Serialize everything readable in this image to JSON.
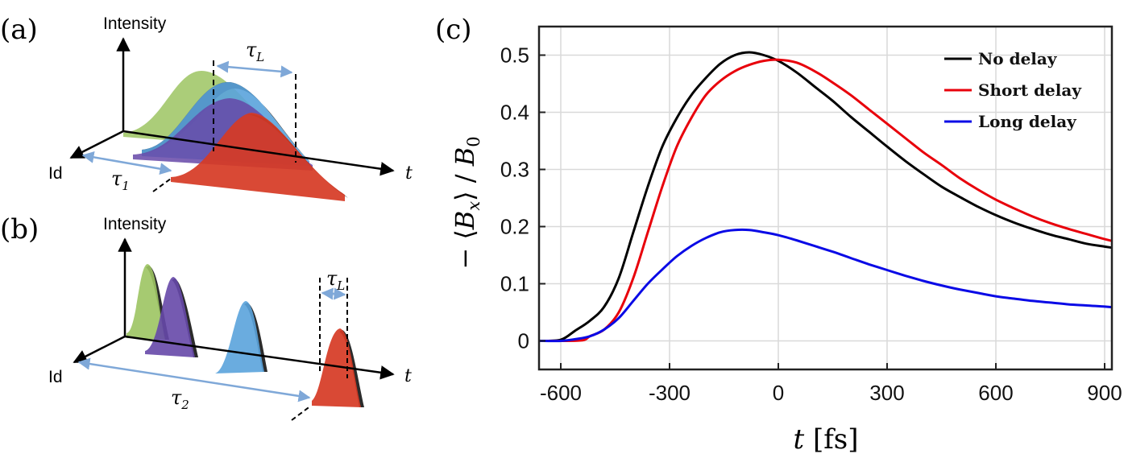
{
  "panels": {
    "a": {
      "label": "(a)",
      "intensity_label": "Intensity",
      "id_label": "Id",
      "t_label": "t",
      "tau_L": {
        "sym": "τ",
        "sub": "L"
      },
      "tau_1": {
        "sym": "τ",
        "sub": "1"
      }
    },
    "b": {
      "label": "(b)",
      "intensity_label": "Intensity",
      "id_label": "Id",
      "t_label": "t",
      "tau_L": {
        "sym": "τ",
        "sub": "L"
      },
      "tau_2": {
        "sym": "τ",
        "sub": "2"
      }
    },
    "c": {
      "label": "(c)"
    }
  },
  "pulse_colors": {
    "green": "#9CC462",
    "light_blue": "#5AA3DC",
    "purple": "#6648A8",
    "red": "#D63A24",
    "dark_edge": "#2B2B2B",
    "arrow": "#7FA8D8"
  },
  "chart_data": {
    "type": "line",
    "xlabel": {
      "var": "t",
      "unit": "[fs]"
    },
    "ylabel": {
      "prefix": "−",
      "var": "B",
      "sub": "x",
      "denom": "B",
      "denom_sub": "0"
    },
    "xlim": [
      -660,
      920
    ],
    "ylim": [
      -0.05,
      0.55
    ],
    "xticks": [
      -600,
      -300,
      0,
      300,
      600,
      900
    ],
    "yticks": [
      0,
      0.1,
      0.2,
      0.3,
      0.4,
      0.5
    ],
    "grid": true,
    "legend_position": "top-right",
    "series": [
      {
        "name": "No delay",
        "color": "#000000",
        "x": [
          -660,
          -600,
          -560,
          -520,
          -480,
          -440,
          -400,
          -360,
          -320,
          -280,
          -240,
          -200,
          -160,
          -120,
          -80,
          -40,
          0,
          50,
          100,
          150,
          200,
          250,
          300,
          350,
          400,
          450,
          500,
          550,
          600,
          650,
          700,
          750,
          800,
          850,
          900,
          920
        ],
        "y": [
          0,
          0.002,
          0.018,
          0.035,
          0.06,
          0.11,
          0.19,
          0.27,
          0.34,
          0.39,
          0.43,
          0.46,
          0.485,
          0.5,
          0.505,
          0.5,
          0.49,
          0.47,
          0.445,
          0.42,
          0.392,
          0.366,
          0.34,
          0.315,
          0.292,
          0.27,
          0.252,
          0.235,
          0.22,
          0.207,
          0.196,
          0.186,
          0.178,
          0.17,
          0.165,
          0.163
        ]
      },
      {
        "name": "Short delay",
        "color": "#E8000B",
        "x": [
          -660,
          -600,
          -540,
          -520,
          -480,
          -440,
          -400,
          -360,
          -320,
          -280,
          -240,
          -200,
          -160,
          -120,
          -80,
          -40,
          0,
          50,
          100,
          150,
          200,
          250,
          300,
          350,
          400,
          450,
          500,
          550,
          600,
          650,
          700,
          750,
          800,
          850,
          900,
          920
        ],
        "y": [
          0,
          0,
          0.001,
          0.008,
          0.02,
          0.05,
          0.11,
          0.19,
          0.27,
          0.34,
          0.39,
          0.43,
          0.455,
          0.472,
          0.483,
          0.49,
          0.492,
          0.487,
          0.472,
          0.452,
          0.43,
          0.405,
          0.38,
          0.355,
          0.33,
          0.308,
          0.285,
          0.265,
          0.247,
          0.232,
          0.218,
          0.206,
          0.196,
          0.187,
          0.178,
          0.175
        ]
      },
      {
        "name": "Long delay",
        "color": "#0A0AE6",
        "x": [
          -660,
          -600,
          -560,
          -520,
          -480,
          -440,
          -400,
          -360,
          -320,
          -280,
          -240,
          -200,
          -160,
          -120,
          -80,
          -40,
          0,
          50,
          100,
          150,
          200,
          250,
          300,
          350,
          400,
          450,
          500,
          550,
          600,
          650,
          700,
          750,
          800,
          850,
          900,
          920
        ],
        "y": [
          0,
          0,
          0.003,
          0.008,
          0.02,
          0.04,
          0.07,
          0.1,
          0.125,
          0.148,
          0.166,
          0.18,
          0.19,
          0.194,
          0.194,
          0.19,
          0.185,
          0.176,
          0.166,
          0.156,
          0.145,
          0.134,
          0.124,
          0.114,
          0.105,
          0.097,
          0.09,
          0.084,
          0.078,
          0.074,
          0.07,
          0.067,
          0.064,
          0.062,
          0.06,
          0.059
        ]
      }
    ]
  }
}
